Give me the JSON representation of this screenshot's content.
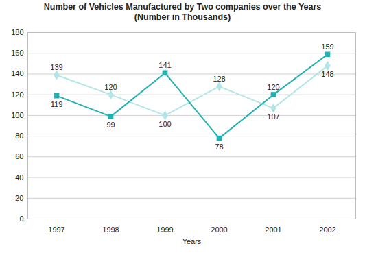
{
  "chart_data": {
    "type": "line",
    "title": "Number of Vehicles Manufactured by Two companies over the Years",
    "subtitle": "(Number in Thousands)",
    "x_label": "Years",
    "categories": [
      "1997",
      "1998",
      "1999",
      "2000",
      "2001",
      "2002"
    ],
    "series": [
      {
        "color": "#b2e6e6",
        "marker": "diamond",
        "line_style": "solid",
        "values": [
          139,
          120,
          100,
          128,
          107,
          148
        ]
      },
      {
        "color": "#22b0b0",
        "marker": "square",
        "line_style": "solid",
        "values": [
          119,
          99,
          141,
          78,
          120,
          159
        ]
      }
    ],
    "ylim": [
      0,
      180
    ],
    "yticks": [
      0,
      20,
      40,
      60,
      80,
      100,
      120,
      140,
      160,
      180
    ],
    "grid": true,
    "data_labels": true
  }
}
